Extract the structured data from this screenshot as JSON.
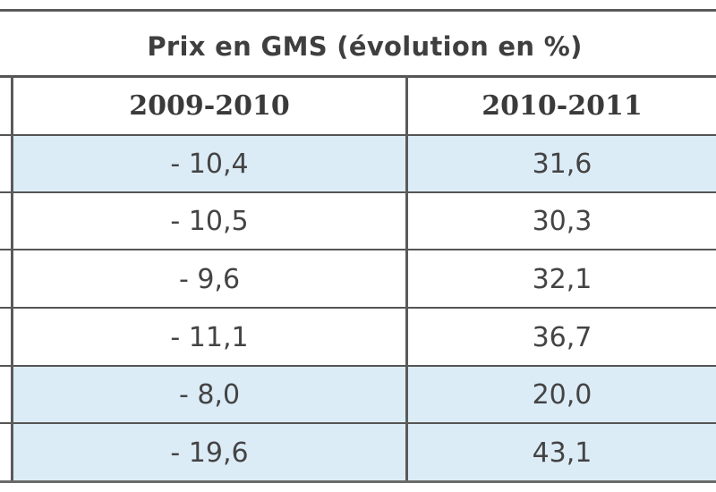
{
  "table": {
    "super_header": "Prix en GMS (évolution en %)",
    "columns": [
      "2009-2010",
      "2010-2011"
    ],
    "rows": [
      {
        "c2009_2010": "- 10,4",
        "c2010_2011": "31,6",
        "highlight": true
      },
      {
        "c2009_2010": "- 10,5",
        "c2010_2011": "30,3",
        "highlight": false
      },
      {
        "c2009_2010": "- 9,6",
        "c2010_2011": "32,1",
        "highlight": false
      },
      {
        "c2009_2010": "- 11,1",
        "c2010_2011": "36,7",
        "highlight": false
      },
      {
        "c2009_2010": "- 8,0",
        "c2010_2011": "20,0",
        "highlight": true
      },
      {
        "c2009_2010": "- 19,6",
        "c2010_2011": "43,1",
        "highlight": true
      }
    ]
  },
  "colors": {
    "highlight_fill": "#dcecf7",
    "rule": "#555555",
    "text": "#444444"
  }
}
